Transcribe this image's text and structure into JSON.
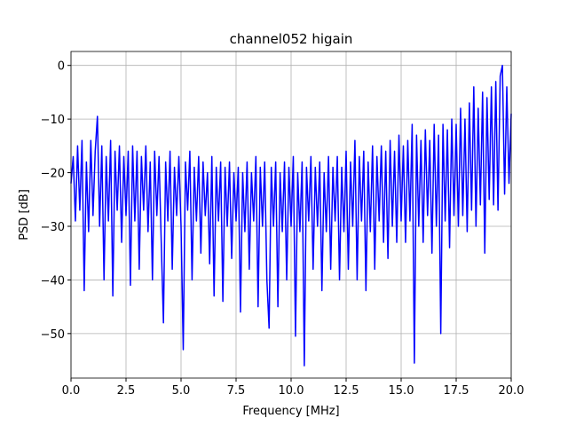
{
  "chart_data": {
    "type": "line",
    "title": "channel052 higain",
    "xlabel": "Frequency [MHz]",
    "ylabel": "PSD [dB]",
    "x": [
      0.0,
      0.1,
      0.2,
      0.3,
      0.4,
      0.5,
      0.6,
      0.7,
      0.8,
      0.9,
      1.0,
      1.1,
      1.2,
      1.3,
      1.4,
      1.5,
      1.6,
      1.7,
      1.8,
      1.9,
      2.0,
      2.1,
      2.2,
      2.3,
      2.4,
      2.5,
      2.6,
      2.7,
      2.8,
      2.9,
      3.0,
      3.1,
      3.2,
      3.3,
      3.4,
      3.5,
      3.6,
      3.7,
      3.8,
      3.9,
      4.0,
      4.1,
      4.2,
      4.3,
      4.4,
      4.5,
      4.6,
      4.7,
      4.8,
      4.9,
      5.0,
      5.1,
      5.2,
      5.3,
      5.4,
      5.5,
      5.6,
      5.7,
      5.8,
      5.9,
      6.0,
      6.1,
      6.2,
      6.3,
      6.4,
      6.5,
      6.6,
      6.7,
      6.8,
      6.9,
      7.0,
      7.1,
      7.2,
      7.3,
      7.4,
      7.5,
      7.6,
      7.7,
      7.8,
      7.9,
      8.0,
      8.1,
      8.2,
      8.3,
      8.4,
      8.5,
      8.6,
      8.7,
      8.8,
      8.9,
      9.0,
      9.1,
      9.2,
      9.3,
      9.4,
      9.5,
      9.6,
      9.7,
      9.8,
      9.9,
      10.0,
      10.1,
      10.2,
      10.3,
      10.4,
      10.5,
      10.6,
      10.7,
      10.8,
      10.9,
      11.0,
      11.1,
      11.2,
      11.3,
      11.4,
      11.5,
      11.6,
      11.7,
      11.8,
      11.9,
      12.0,
      12.1,
      12.2,
      12.3,
      12.4,
      12.5,
      12.6,
      12.7,
      12.8,
      12.9,
      13.0,
      13.1,
      13.2,
      13.3,
      13.4,
      13.5,
      13.6,
      13.7,
      13.8,
      13.9,
      14.0,
      14.1,
      14.2,
      14.3,
      14.4,
      14.5,
      14.6,
      14.7,
      14.8,
      14.9,
      15.0,
      15.1,
      15.2,
      15.3,
      15.4,
      15.5,
      15.6,
      15.7,
      15.8,
      15.9,
      16.0,
      16.1,
      16.2,
      16.3,
      16.4,
      16.5,
      16.6,
      16.7,
      16.8,
      16.9,
      17.0,
      17.1,
      17.2,
      17.3,
      17.4,
      17.5,
      17.6,
      17.7,
      17.8,
      17.9,
      18.0,
      18.1,
      18.2,
      18.3,
      18.4,
      18.5,
      18.6,
      18.7,
      18.8,
      18.9,
      19.0,
      19.1,
      19.2,
      19.3,
      19.4,
      19.5,
      19.6,
      19.7,
      19.8,
      19.9,
      20.0
    ],
    "series": [
      {
        "color": "#0000ff",
        "values": [
          -22,
          -17,
          -29,
          -15,
          -27,
          -14,
          -42,
          -18,
          -31,
          -14,
          -28,
          -16,
          -9.5,
          -30,
          -15,
          -40,
          -17,
          -29,
          -14,
          -43,
          -16,
          -27,
          -15,
          -33,
          -17,
          -28,
          -16,
          -41,
          -15,
          -29,
          -16,
          -38,
          -17,
          -27,
          -15,
          -31,
          -18,
          -40,
          -16,
          -28,
          -17,
          -33,
          -48,
          -18,
          -29,
          -16,
          -38,
          -19,
          -28,
          -17,
          -30,
          -53,
          -18,
          -27,
          -16,
          -40,
          -19,
          -29,
          -17,
          -35,
          -18,
          -28,
          -20,
          -37,
          -17,
          -43,
          -19,
          -29,
          -18,
          -44,
          -19,
          -30,
          -18,
          -36,
          -20,
          -29,
          -19,
          -46,
          -20,
          -31,
          -18,
          -38,
          -20,
          -29,
          -17,
          -45,
          -19,
          -30,
          -18,
          -40,
          -49,
          -19,
          -30,
          -18,
          -45,
          -20,
          -31,
          -18,
          -40,
          -19,
          -30,
          -17,
          -50.5,
          -20,
          -31,
          -18,
          -56,
          -19,
          -29,
          -17,
          -38,
          -19,
          -30,
          -18,
          -42,
          -20,
          -31,
          -17,
          -38,
          -19,
          -29,
          -17,
          -40,
          -19,
          -31,
          -16,
          -38,
          -18,
          -30,
          -14,
          -40,
          -17,
          -29,
          -16,
          -42,
          -18,
          -31,
          -15,
          -38,
          -17,
          -29,
          -15,
          -33,
          -16,
          -36,
          -14,
          -30,
          -16,
          -33,
          -13,
          -29,
          -15,
          -33,
          -14,
          -29,
          -11,
          -55.5,
          -13,
          -30,
          -14,
          -33,
          -12,
          -28,
          -14,
          -35,
          -11,
          -30,
          -13,
          -50,
          -11,
          -29,
          -12,
          -34,
          -10,
          -28,
          -11,
          -30,
          -8,
          -28,
          -10,
          -31,
          -7,
          -27,
          -4,
          -30,
          -8,
          -26,
          -5,
          -35,
          -6,
          -25,
          -4,
          -26,
          -3,
          -27,
          -2,
          0,
          -24,
          -4,
          -22,
          -9
        ]
      }
    ],
    "xlim": [
      0,
      20
    ],
    "ylim": [
      -58.3,
      2.6
    ],
    "xticks": [
      {
        "value": 0,
        "label": "0.0"
      },
      2.5,
      {
        "value": 5,
        "label": "5.0"
      },
      7.5,
      {
        "value": 10,
        "label": "10.0"
      },
      12.5,
      {
        "value": 15,
        "label": "15.0"
      },
      17.5,
      {
        "value": 20,
        "label": "20.0"
      }
    ],
    "yticks": [
      {
        "value": -50,
        "label": "−50"
      },
      {
        "value": -40,
        "label": "−40"
      },
      {
        "value": -30,
        "label": "−30"
      },
      {
        "value": -20,
        "label": "−20"
      },
      {
        "value": -10,
        "label": "−10"
      },
      0
    ],
    "grid": true
  }
}
